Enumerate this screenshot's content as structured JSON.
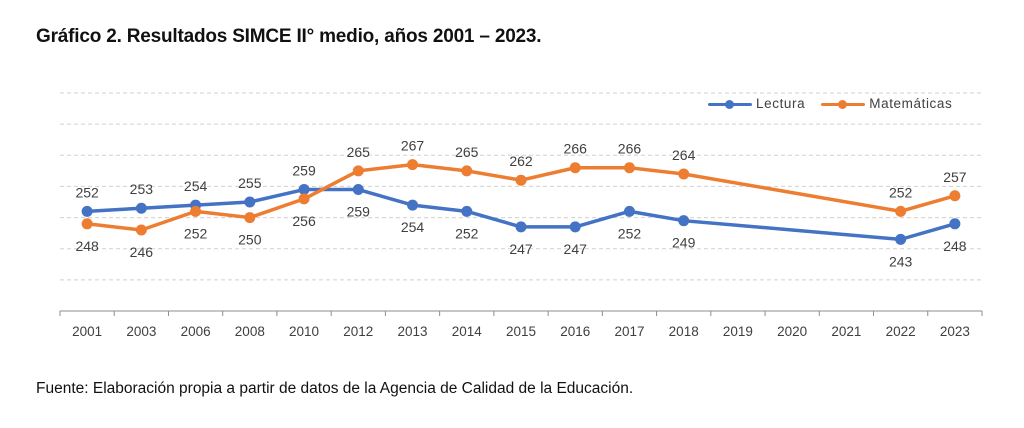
{
  "title": "Gráfico 2. Resultados SIMCE II° medio, años 2001 – 2023.",
  "source": "Fuente: Elaboración propia a partir de datos de la Agencia de Calidad de la Educación.",
  "colors": {
    "lectura": "#4472C4",
    "matematicas": "#ED7D31",
    "gridline": "#D0D0D0",
    "axis": "#8C8C8C",
    "label_text": "#404040"
  },
  "chart_data": {
    "type": "line",
    "title": "Gráfico 2. Resultados SIMCE II° medio, años 2001 – 2023.",
    "xlabel": "",
    "ylabel": "",
    "categories": [
      "2001",
      "2003",
      "2006",
      "2008",
      "2010",
      "2012",
      "2013",
      "2014",
      "2015",
      "2016",
      "2017",
      "2018",
      "2019",
      "2020",
      "2021",
      "2022",
      "2023"
    ],
    "series": [
      {
        "name": "Lectura",
        "values": [
          252,
          253,
          254,
          255,
          259,
          259,
          254,
          252,
          247,
          247,
          252,
          249,
          null,
          null,
          null,
          243,
          248
        ],
        "label_position": [
          "above",
          "above",
          "above",
          "above",
          "above",
          "below",
          "below",
          "below",
          "below",
          "below",
          "below",
          "below",
          null,
          null,
          null,
          "below",
          "below"
        ]
      },
      {
        "name": "Matemáticas",
        "values": [
          248,
          246,
          252,
          250,
          256,
          265,
          267,
          265,
          262,
          266,
          266,
          264,
          null,
          null,
          null,
          252,
          257
        ],
        "label_position": [
          "below",
          "below",
          "below",
          "below",
          "below",
          "above",
          "above",
          "above",
          "above",
          "above",
          "above",
          "above",
          null,
          null,
          null,
          "above",
          "above"
        ]
      }
    ],
    "ylim": [
      220,
      290
    ],
    "y_gridlines": [
      230,
      240,
      250,
      260,
      270,
      280,
      290
    ],
    "y_tick_labels_visible": false,
    "grid": true,
    "grid_style": "dashed",
    "gaps": "connected",
    "legend": {
      "position": "top-right",
      "entries": [
        "Lectura",
        "Matemáticas"
      ]
    }
  }
}
